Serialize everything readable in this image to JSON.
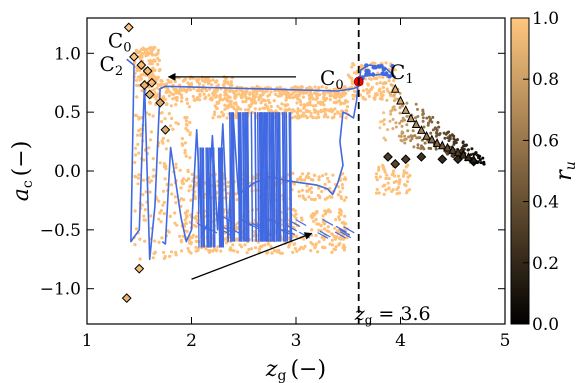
{
  "chart_data": {
    "type": "scatter",
    "xlabel_main": "z",
    "xlabel_sub": "g",
    "xlabel_unit": "(−)",
    "ylabel_main": "a",
    "ylabel_sub": "c",
    "ylabel_unit": "(−)",
    "xlim": [
      1,
      5
    ],
    "ylim": [
      -1.3,
      1.3
    ],
    "xticks": [
      1,
      2,
      3,
      4,
      5
    ],
    "yticks": [
      -1.0,
      -0.5,
      0.0,
      0.5,
      1.0
    ],
    "ytick_labels": [
      "−1.0",
      "−0.5",
      "0.0",
      "0.5",
      "1.0"
    ],
    "grid": false,
    "colorbar": {
      "label_main": "r",
      "label_sub": "u",
      "range": [
        0.0,
        1.0
      ],
      "ticks": [
        0.0,
        0.2,
        0.4,
        0.6,
        0.8,
        1.0
      ],
      "tick_labels": [
        "0.0",
        "0.2",
        "0.4",
        "0.6",
        "0.8",
        "1.0"
      ],
      "colormap": "copper",
      "colors": [
        "#000000",
        "#ffc77f"
      ]
    },
    "threshold_line": {
      "x": 3.6,
      "label_main": "z",
      "label_sub": "g",
      "label_rest": " = 3.6",
      "style": "dashed",
      "color": "#000000"
    },
    "annotations": [
      {
        "main": "C",
        "sub": "0",
        "x": 1.2,
        "y": 1.05
      },
      {
        "main": "C",
        "sub": "2",
        "x": 1.12,
        "y": 0.85
      },
      {
        "main": "C",
        "sub": "0",
        "x": 3.23,
        "y": 0.73
      },
      {
        "main": "C",
        "sub": "1",
        "x": 3.9,
        "y": 0.78
      }
    ],
    "arrows": [
      {
        "from": [
          3.0,
          0.8
        ],
        "to": [
          1.78,
          0.8
        ]
      },
      {
        "from": [
          2.0,
          -0.92
        ],
        "to": [
          3.15,
          -0.53
        ]
      }
    ],
    "series": [
      {
        "kind": "scatter",
        "color": "#ffc07a",
        "clusters": [
          {
            "x": [
              1.45,
              1.7
            ],
            "y": [
              0.68,
              1.05
            ],
            "count": 130
          },
          {
            "x": [
              1.6,
              2.4
            ],
            "y": [
              0.6,
              0.8
            ],
            "count": 200
          },
          {
            "x": [
              2.4,
              3.5
            ],
            "y": [
              0.62,
              0.72
            ],
            "count": 240
          },
          {
            "x": [
              2.2,
              3.5
            ],
            "y": [
              0.45,
              0.62
            ],
            "count": 240
          },
          {
            "x": [
              1.45,
              2.0
            ],
            "y": [
              -0.75,
              0.65
            ],
            "count": 180
          },
          {
            "x": [
              1.9,
              3.5
            ],
            "y": [
              -0.25,
              -0.02
            ],
            "count": 220
          },
          {
            "x": [
              1.9,
              3.5
            ],
            "y": [
              -0.58,
              -0.32
            ],
            "count": 240
          },
          {
            "x": [
              1.9,
              3.5
            ],
            "y": [
              -0.7,
              -0.55
            ],
            "count": 160
          },
          {
            "x": [
              3.5,
              3.95
            ],
            "y": [
              0.6,
              0.92
            ],
            "count": 120
          },
          {
            "x": [
              3.75,
              4.1
            ],
            "y": [
              -0.2,
              0.05
            ],
            "count": 60
          }
        ]
      },
      {
        "kind": "trajectory",
        "color": "#4169e1",
        "x": [
          1.38,
          1.45,
          1.42,
          1.5,
          1.55,
          1.6,
          1.65,
          1.7,
          1.75,
          3.4,
          3.55,
          3.6,
          3.62,
          3.7,
          3.85,
          3.95,
          3.8,
          3.6,
          3.58,
          3.55,
          3.5,
          3.45,
          3.42,
          3.45,
          3.4,
          3.35,
          3.3,
          3.2,
          3.05,
          2.9,
          2.75,
          2.6,
          2.45,
          2.4,
          2.35,
          2.3,
          2.25,
          2.2,
          2.15,
          2.1,
          2.05,
          2.0,
          1.95,
          1.9,
          1.8,
          1.75,
          1.72
        ],
        "y": [
          0.95,
          0.9,
          -0.6,
          -0.5,
          0.75,
          -0.75,
          -0.3,
          0.7,
          0.72,
          0.68,
          0.7,
          0.72,
          0.86,
          0.9,
          0.88,
          0.8,
          0.82,
          0.8,
          0.6,
          0.45,
          0.48,
          0.5,
          0.25,
          0.05,
          -0.1,
          -0.2,
          -0.15,
          -0.12,
          -0.1,
          -0.08,
          -0.05,
          -0.1,
          -0.2,
          0.45,
          -0.6,
          0.4,
          -0.5,
          0.3,
          -0.45,
          -0.55,
          0.35,
          -0.5,
          -0.6,
          -0.4,
          0.2,
          -0.62,
          -0.6
        ]
      },
      {
        "kind": "markers",
        "marker": "diamond",
        "edge": "#000000",
        "x": [
          1.4,
          1.45,
          1.52,
          1.58,
          1.62,
          1.6,
          1.55,
          1.7,
          1.75,
          1.5,
          1.38,
          3.88,
          3.95,
          4.05,
          4.2,
          4.4,
          4.55,
          4.7
        ],
        "y": [
          1.22,
          0.97,
          0.9,
          0.85,
          0.75,
          0.65,
          0.73,
          0.58,
          0.35,
          -0.83,
          -1.08,
          0.12,
          0.06,
          0.1,
          0.12,
          0.1,
          0.1,
          0.08
        ],
        "r": [
          1.0,
          1.0,
          0.95,
          0.95,
          0.95,
          0.9,
          0.9,
          0.85,
          0.85,
          0.95,
          0.9,
          0.3,
          0.35,
          0.3,
          0.25,
          0.2,
          0.2,
          0.1
        ]
      },
      {
        "kind": "markers",
        "marker": "triangle",
        "edge": "#000000",
        "x": [
          3.95,
          4.0,
          4.05,
          4.1,
          4.15,
          4.2,
          4.25,
          4.3,
          4.35,
          4.4,
          4.45,
          4.5,
          4.55,
          4.6,
          4.65,
          4.7
        ],
        "y": [
          0.7,
          0.6,
          0.52,
          0.45,
          0.4,
          0.35,
          0.3,
          0.27,
          0.24,
          0.22,
          0.2,
          0.18,
          0.16,
          0.14,
          0.12,
          0.1
        ],
        "r": [
          0.9,
          0.85,
          0.8,
          0.75,
          0.7,
          0.65,
          0.6,
          0.55,
          0.5,
          0.45,
          0.4,
          0.35,
          0.3,
          0.25,
          0.2,
          0.15
        ]
      },
      {
        "kind": "gradient-scatter",
        "x": [
          3.8,
          4.8
        ],
        "y": [
          -0.1,
          0.6
        ],
        "count": 220
      },
      {
        "kind": "highlight",
        "color": "#ff0000",
        "x": [
          3.6
        ],
        "y": [
          0.76
        ]
      }
    ]
  }
}
